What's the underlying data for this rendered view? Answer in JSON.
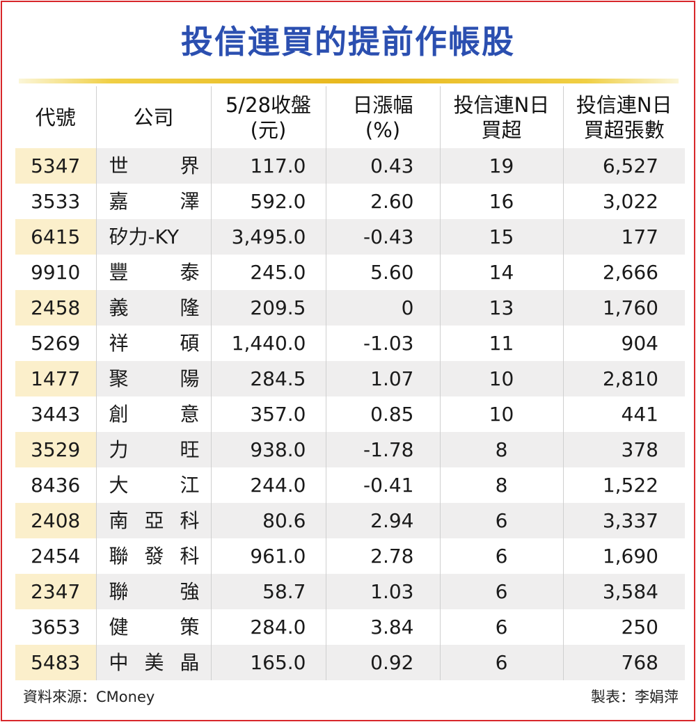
{
  "title": "投信連買的提前作帳股",
  "headers": {
    "code": "代號",
    "company": "公司",
    "close_l1": "5/28收盤",
    "close_l2": "(元)",
    "chg_l1": "日漲幅",
    "chg_l2": "(%)",
    "days_l1": "投信連N日",
    "days_l2": "買超",
    "amt_l1": "投信連N日",
    "amt_l2": "買超張數"
  },
  "chart_data": {
    "type": "table",
    "columns": [
      "代號",
      "公司",
      "5/28收盤(元)",
      "日漲幅(%)",
      "投信連N日買超",
      "投信連N日買超張數"
    ],
    "rows": [
      {
        "code": "5347",
        "name": [
          "世",
          "界"
        ],
        "close": "117.0",
        "change": "0.43",
        "days": "19",
        "shares": "6,527"
      },
      {
        "code": "3533",
        "name": [
          "嘉",
          "澤"
        ],
        "close": "592.0",
        "change": "2.60",
        "days": "16",
        "shares": "3,022"
      },
      {
        "code": "6415",
        "name": [
          "矽力-KY"
        ],
        "close": "3,495.0",
        "change": "-0.43",
        "days": "15",
        "shares": "177"
      },
      {
        "code": "9910",
        "name": [
          "豐",
          "泰"
        ],
        "close": "245.0",
        "change": "5.60",
        "days": "14",
        "shares": "2,666"
      },
      {
        "code": "2458",
        "name": [
          "義",
          "隆"
        ],
        "close": "209.5",
        "change": "0",
        "days": "13",
        "shares": "1,760"
      },
      {
        "code": "5269",
        "name": [
          "祥",
          "碩"
        ],
        "close": "1,440.0",
        "change": "-1.03",
        "days": "11",
        "shares": "904"
      },
      {
        "code": "1477",
        "name": [
          "聚",
          "陽"
        ],
        "close": "284.5",
        "change": "1.07",
        "days": "10",
        "shares": "2,810"
      },
      {
        "code": "3443",
        "name": [
          "創",
          "意"
        ],
        "close": "357.0",
        "change": "0.85",
        "days": "10",
        "shares": "441"
      },
      {
        "code": "3529",
        "name": [
          "力",
          "旺"
        ],
        "close": "938.0",
        "change": "-1.78",
        "days": "8",
        "shares": "378"
      },
      {
        "code": "8436",
        "name": [
          "大",
          "江"
        ],
        "close": "244.0",
        "change": "-0.41",
        "days": "8",
        "shares": "1,522"
      },
      {
        "code": "2408",
        "name": [
          "南",
          "亞",
          "科"
        ],
        "close": "80.6",
        "change": "2.94",
        "days": "6",
        "shares": "3,337"
      },
      {
        "code": "2454",
        "name": [
          "聯",
          "發",
          "科"
        ],
        "close": "961.0",
        "change": "2.78",
        "days": "6",
        "shares": "1,690"
      },
      {
        "code": "2347",
        "name": [
          "聯",
          "強"
        ],
        "close": "58.7",
        "change": "1.03",
        "days": "6",
        "shares": "3,584"
      },
      {
        "code": "3653",
        "name": [
          "健",
          "策"
        ],
        "close": "284.0",
        "change": "3.84",
        "days": "6",
        "shares": "250"
      },
      {
        "code": "5483",
        "name": [
          "中",
          "美",
          "晶"
        ],
        "close": "165.0",
        "change": "0.92",
        "days": "6",
        "shares": "768"
      }
    ]
  },
  "footer": {
    "source": "資料來源：CMoney",
    "maker": "製表：李娟萍"
  },
  "colors": {
    "title": "#2b4fb0",
    "border": "#d8262a",
    "rule": "#e8b81e",
    "code_highlight": "#fbefcb",
    "row_stripe": "#efeeee"
  }
}
